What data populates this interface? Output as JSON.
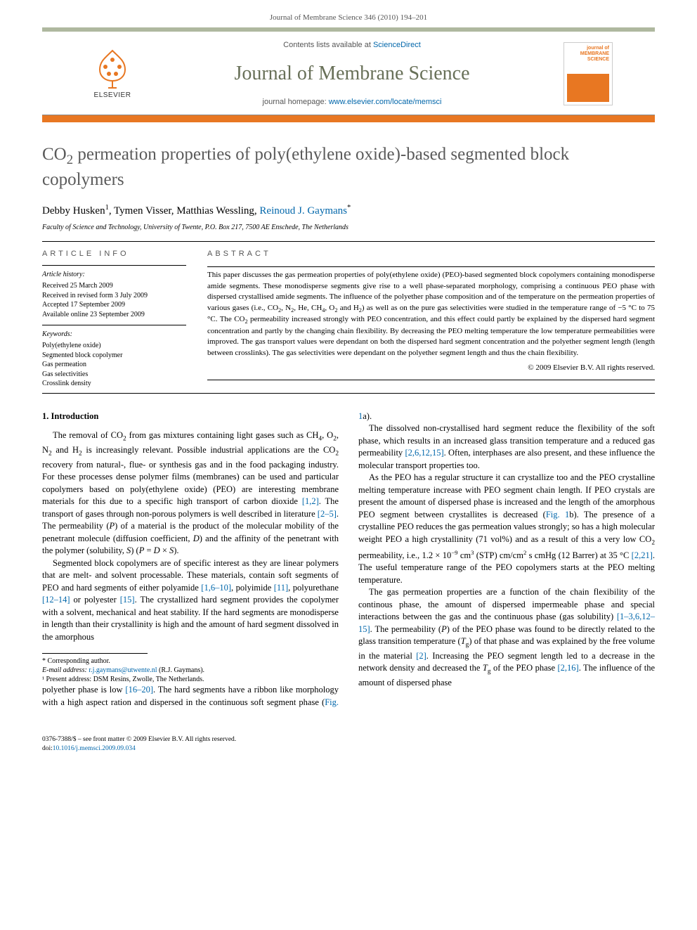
{
  "header": {
    "citation": "Journal of Membrane Science 346 (2010) 194–201"
  },
  "masthead": {
    "contents_prefix": "Contents lists available at ",
    "contents_link": "ScienceDirect",
    "journal": "Journal of Membrane Science",
    "homepage_prefix": "journal homepage: ",
    "homepage_url": "www.elsevier.com/locate/memsci",
    "publisher": "ELSEVIER",
    "cover_label": "journal of\nMEMBRANE\nSCIENCE"
  },
  "article": {
    "title_html": "CO<sub>2</sub> permeation properties of poly(ethylene oxide)-based segmented block copolymers",
    "authors_html": "Debby Husken<sup>1</sup>, Tymen Visser, Matthias Wessling, <span class=\"author-link\">Reinoud J. Gaymans</span><sup>*</sup>",
    "affiliation": "Faculty of Science and Technology, University of Twente, P.O. Box 217, 7500 AE Enschede, The Netherlands"
  },
  "info": {
    "heading": "ARTICLE INFO",
    "history_label": "Article history:",
    "received": "Received 25 March 2009",
    "revised": "Received in revised form 3 July 2009",
    "accepted": "Accepted 17 September 2009",
    "online": "Available online 23 September 2009",
    "keywords_label": "Keywords:",
    "kw1": "Poly(ethylene oxide)",
    "kw2": "Segmented block copolymer",
    "kw3": "Gas permeation",
    "kw4": "Gas selectivities",
    "kw5": "Crosslink density"
  },
  "abstract": {
    "heading": "ABSTRACT",
    "text_html": "This paper discusses the gas permeation properties of poly(ethylene oxide) (PEO)-based segmented block copolymers containing monodisperse amide segments. These monodisperse segments give rise to a well phase-separated morphology, comprising a continuous PEO phase with dispersed crystallised amide segments. The influence of the polyether phase composition and of the temperature on the permeation properties of various gases (i.e., CO<sub>2</sub>, N<sub>2</sub>, He, CH<sub>4</sub>, O<sub>2</sub> and H<sub>2</sub>) as well as on the pure gas selectivities were studied in the temperature range of −5 °C to 75 °C. The CO<sub>2</sub> permeability increased strongly with PEO concentration, and this effect could partly be explained by the dispersed hard segment concentration and partly by the changing chain flexibility. By decreasing the PEO melting temperature the low temperature permeabilities were improved. The gas transport values were dependant on both the dispersed hard segment concentration and the polyether segment length (length between crosslinks). The gas selectivities were dependant on the polyether segment length and thus the chain flexibility.",
    "copyright": "© 2009 Elsevier B.V. All rights reserved."
  },
  "body": {
    "sec1_heading": "1. Introduction",
    "p1_html": "The removal of CO<sub>2</sub> from gas mixtures containing light gases such as CH<sub>4</sub>, O<sub>2</sub>, N<sub>2</sub> and H<sub>2</sub> is increasingly relevant. Possible industrial applications are the CO<sub>2</sub> recovery from natural-, flue- or synthesis gas and in the food packaging industry. For these processes dense polymer films (membranes) can be used and particular copolymers based on poly(ethylene oxide) (PEO) are interesting membrane materials for this due to a specific high transport of carbon dioxide <span class=\"ref-link\">[1,2]</span>. The transport of gases through non-porous polymers is well described in literature <span class=\"ref-link\">[2–5]</span>. The permeability (<i>P</i>) of a material is the product of the molecular mobility of the penetrant molecule (diffusion coefficient, <i>D</i>) and the affinity of the penetrant with the polymer (solubility, <i>S</i>) (<i>P</i> = <i>D</i> × <i>S</i>).",
    "p2_html": "Segmented block copolymers are of specific interest as they are linear polymers that are melt- and solvent processable. These materials, contain soft segments of PEO and hard segments of either polyamide <span class=\"ref-link\">[1,6–10]</span>, polyimide <span class=\"ref-link\">[11]</span>, polyurethane <span class=\"ref-link\">[12–14]</span> or polyester <span class=\"ref-link\">[15]</span>. The crystallized hard segment provides the copolymer with a solvent, mechanical and heat stability. If the hard segments are monodisperse in length than their crystallinity is high and the amount of hard segment dissolved in the amorphous",
    "p3_html": "polyether phase is low <span class=\"ref-link\">[16–20]</span>. The hard segments have a ribbon like morphology with a high aspect ration and dispersed in the continuous soft segment phase (<span class=\"ref-link\">Fig. 1</span>a).",
    "p4_html": "The dissolved non-crystallised hard segment reduce the flexibility of the soft phase, which results in an increased glass transition temperature and a reduced gas permeability <span class=\"ref-link\">[2,6,12,15]</span>. Often, interphases are also present, and these influence the molecular transport properties too.",
    "p5_html": "As the PEO has a regular structure it can crystallize too and the PEO crystalline melting temperature increase with PEO segment chain length. If PEO crystals are present the amount of dispersed phase is increased and the length of the amorphous PEO segment between crystallites is decreased (<span class=\"ref-link\">Fig. 1</span>b). The presence of a crystalline PEO reduces the gas permeation values strongly; so has a high molecular weight PEO a high crystallinity (71 vol%) and as a result of this a very low CO<sub>2</sub> permeability, i.e., 1.2 × 10<sup>−9</sup> cm<sup>3</sup> (STP) cm/cm<sup>2</sup> s cmHg (12 Barrer) at 35 °C <span class=\"ref-link\">[2,21]</span>. The useful temperature range of the PEO copolymers starts at the PEO melting temperature.",
    "p6_html": "The gas permeation properties are a function of the chain flexibility of the continous phase, the amount of dispersed impermeable phase and special interactions between the gas and the continuous phase (gas solubility) <span class=\"ref-link\">[1–3,6,12–15]</span>. The permeability (<i>P</i>) of the PEO phase was found to be directly related to the glass transition temperature (<i>T</i><sub>g</sub>) of that phase and was explained by the free volume in the material <span class=\"ref-link\">[2]</span>. Increasing the PEO segment length led to a decrease in the network density and decreased the <i>T</i><sub>g</sub> of the PEO phase <span class=\"ref-link\">[2,16]</span>. The influence of the amount of dispersed phase"
  },
  "footnotes": {
    "corresponding": "* Corresponding author.",
    "email_label": "E-mail address: ",
    "email": "r.j.gaymans@utwente.nl",
    "email_suffix": " (R.J. Gaymans).",
    "note1": "¹ Present address: DSM Resins, Zwolle, The Netherlands."
  },
  "doi": {
    "issn": "0376-7388/$ – see front matter © 2009 Elsevier B.V. All rights reserved.",
    "doi_label": "doi:",
    "doi": "10.1016/j.memsci.2009.09.034"
  },
  "colors": {
    "bar_top": "#afb89f",
    "bar_orange": "#e87722",
    "link": "#0066aa",
    "journal_name": "#687058"
  }
}
